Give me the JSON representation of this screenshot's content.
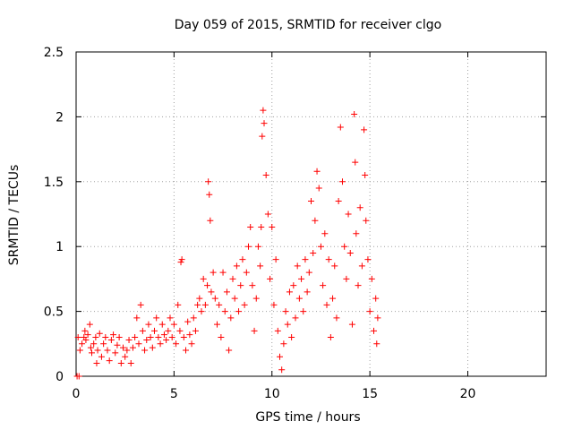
{
  "chart_data": {
    "type": "scatter",
    "title": "Day 059 of 2015, SRMTID for receiver clgo",
    "xlabel": "GPS time / hours",
    "ylabel": "SRMTID / TECUs",
    "xlim": [
      0,
      24
    ],
    "ylim": [
      0,
      2.5
    ],
    "xticks": [
      0,
      5,
      10,
      15,
      20
    ],
    "yticks": [
      0,
      0.5,
      1,
      1.5,
      2,
      2.5
    ],
    "xtick_labels": [
      "0",
      "5",
      "10",
      "15",
      "20"
    ],
    "ytick_labels": [
      "0",
      "0.5",
      "1",
      "1.5",
      "2",
      "2.5"
    ],
    "grid": true,
    "marker": "plus",
    "color": "#ff0000",
    "series": [
      {
        "name": "SRMTID",
        "points": [
          [
            0.05,
            0.0
          ],
          [
            0.15,
            0.0
          ],
          [
            0.1,
            0.3
          ],
          [
            0.2,
            0.2
          ],
          [
            0.3,
            0.25
          ],
          [
            0.4,
            0.3
          ],
          [
            0.45,
            0.35
          ],
          [
            0.5,
            0.28
          ],
          [
            0.6,
            0.32
          ],
          [
            0.7,
            0.4
          ],
          [
            0.75,
            0.22
          ],
          [
            0.8,
            0.18
          ],
          [
            0.9,
            0.25
          ],
          [
            1.0,
            0.3
          ],
          [
            1.05,
            0.1
          ],
          [
            1.1,
            0.2
          ],
          [
            1.2,
            0.33
          ],
          [
            1.3,
            0.15
          ],
          [
            1.4,
            0.25
          ],
          [
            1.5,
            0.3
          ],
          [
            1.6,
            0.2
          ],
          [
            1.7,
            0.12
          ],
          [
            1.8,
            0.28
          ],
          [
            1.9,
            0.32
          ],
          [
            2.0,
            0.18
          ],
          [
            2.1,
            0.24
          ],
          [
            2.2,
            0.3
          ],
          [
            2.3,
            0.1
          ],
          [
            2.4,
            0.22
          ],
          [
            2.5,
            0.15
          ],
          [
            2.6,
            0.2
          ],
          [
            2.7,
            0.28
          ],
          [
            2.8,
            0.1
          ],
          [
            2.9,
            0.22
          ],
          [
            3.0,
            0.3
          ],
          [
            3.1,
            0.45
          ],
          [
            3.2,
            0.25
          ],
          [
            3.3,
            0.55
          ],
          [
            3.4,
            0.35
          ],
          [
            3.5,
            0.2
          ],
          [
            3.6,
            0.28
          ],
          [
            3.7,
            0.4
          ],
          [
            3.8,
            0.3
          ],
          [
            3.9,
            0.22
          ],
          [
            4.0,
            0.35
          ],
          [
            4.1,
            0.45
          ],
          [
            4.2,
            0.3
          ],
          [
            4.3,
            0.25
          ],
          [
            4.4,
            0.4
          ],
          [
            4.5,
            0.32
          ],
          [
            4.6,
            0.28
          ],
          [
            4.7,
            0.35
          ],
          [
            4.8,
            0.45
          ],
          [
            4.9,
            0.3
          ],
          [
            5.0,
            0.4
          ],
          [
            5.1,
            0.25
          ],
          [
            5.2,
            0.55
          ],
          [
            5.3,
            0.35
          ],
          [
            5.35,
            0.88
          ],
          [
            5.4,
            0.9
          ],
          [
            5.5,
            0.3
          ],
          [
            5.6,
            0.2
          ],
          [
            5.7,
            0.42
          ],
          [
            5.8,
            0.32
          ],
          [
            5.9,
            0.25
          ],
          [
            6.0,
            0.45
          ],
          [
            6.1,
            0.35
          ],
          [
            6.2,
            0.55
          ],
          [
            6.3,
            0.6
          ],
          [
            6.4,
            0.5
          ],
          [
            6.5,
            0.75
          ],
          [
            6.6,
            0.55
          ],
          [
            6.7,
            0.7
          ],
          [
            6.75,
            1.5
          ],
          [
            6.8,
            1.4
          ],
          [
            6.85,
            1.2
          ],
          [
            6.9,
            0.65
          ],
          [
            7.0,
            0.8
          ],
          [
            7.1,
            0.6
          ],
          [
            7.2,
            0.4
          ],
          [
            7.3,
            0.55
          ],
          [
            7.4,
            0.3
          ],
          [
            7.5,
            0.8
          ],
          [
            7.6,
            0.5
          ],
          [
            7.7,
            0.65
          ],
          [
            7.8,
            0.2
          ],
          [
            7.9,
            0.45
          ],
          [
            8.0,
            0.75
          ],
          [
            8.1,
            0.6
          ],
          [
            8.2,
            0.85
          ],
          [
            8.3,
            0.5
          ],
          [
            8.4,
            0.7
          ],
          [
            8.5,
            0.9
          ],
          [
            8.6,
            0.55
          ],
          [
            8.7,
            0.8
          ],
          [
            8.8,
            1.0
          ],
          [
            8.9,
            1.15
          ],
          [
            9.0,
            0.7
          ],
          [
            9.1,
            0.35
          ],
          [
            9.2,
            0.6
          ],
          [
            9.3,
            1.0
          ],
          [
            9.4,
            0.85
          ],
          [
            9.45,
            1.15
          ],
          [
            9.5,
            1.85
          ],
          [
            9.55,
            2.05
          ],
          [
            9.6,
            1.95
          ],
          [
            9.7,
            1.55
          ],
          [
            9.8,
            1.25
          ],
          [
            9.9,
            0.75
          ],
          [
            10.0,
            1.15
          ],
          [
            10.1,
            0.55
          ],
          [
            10.2,
            0.9
          ],
          [
            10.3,
            0.35
          ],
          [
            10.4,
            0.15
          ],
          [
            10.5,
            0.05
          ],
          [
            10.6,
            0.25
          ],
          [
            10.7,
            0.5
          ],
          [
            10.8,
            0.4
          ],
          [
            10.9,
            0.65
          ],
          [
            11.0,
            0.3
          ],
          [
            11.1,
            0.7
          ],
          [
            11.2,
            0.45
          ],
          [
            11.3,
            0.85
          ],
          [
            11.4,
            0.6
          ],
          [
            11.5,
            0.75
          ],
          [
            11.6,
            0.5
          ],
          [
            11.7,
            0.9
          ],
          [
            11.8,
            0.65
          ],
          [
            11.9,
            0.8
          ],
          [
            12.0,
            1.35
          ],
          [
            12.1,
            0.95
          ],
          [
            12.2,
            1.2
          ],
          [
            12.3,
            1.58
          ],
          [
            12.4,
            1.45
          ],
          [
            12.5,
            1.0
          ],
          [
            12.6,
            0.7
          ],
          [
            12.7,
            1.1
          ],
          [
            12.8,
            0.55
          ],
          [
            12.9,
            0.9
          ],
          [
            13.0,
            0.3
          ],
          [
            13.1,
            0.6
          ],
          [
            13.2,
            0.85
          ],
          [
            13.3,
            0.45
          ],
          [
            13.4,
            1.35
          ],
          [
            13.5,
            1.92
          ],
          [
            13.6,
            1.5
          ],
          [
            13.7,
            1.0
          ],
          [
            13.8,
            0.75
          ],
          [
            13.9,
            1.25
          ],
          [
            14.0,
            0.95
          ],
          [
            14.1,
            0.4
          ],
          [
            14.2,
            2.02
          ],
          [
            14.25,
            1.65
          ],
          [
            14.3,
            1.1
          ],
          [
            14.4,
            0.7
          ],
          [
            14.5,
            1.3
          ],
          [
            14.6,
            0.85
          ],
          [
            14.7,
            1.9
          ],
          [
            14.75,
            1.55
          ],
          [
            14.8,
            1.2
          ],
          [
            14.9,
            0.9
          ],
          [
            15.0,
            0.5
          ],
          [
            15.1,
            0.75
          ],
          [
            15.2,
            0.35
          ],
          [
            15.3,
            0.6
          ],
          [
            15.35,
            0.25
          ],
          [
            15.4,
            0.45
          ]
        ]
      }
    ]
  }
}
